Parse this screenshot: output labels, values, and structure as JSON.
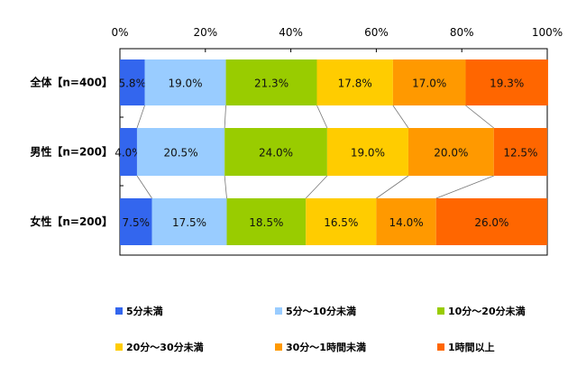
{
  "chart_data": {
    "type": "bar",
    "orientation": "horizontal",
    "stacked": "100%",
    "categories": [
      "全体【n=400】",
      "男性【n=200】",
      "女性【n=200】"
    ],
    "series": [
      {
        "name": "5分未満",
        "color": "#3366ee",
        "values": [
          5.8,
          4.0,
          7.5
        ],
        "labels": [
          "5.8%",
          "4.0%",
          "7.5%"
        ]
      },
      {
        "name": "5分～10分未満",
        "color": "#99ccff",
        "values": [
          19.0,
          20.5,
          17.5
        ],
        "labels": [
          "19.0%",
          "20.5%",
          "17.5%"
        ]
      },
      {
        "name": "10分～20分未満",
        "color": "#99cc00",
        "values": [
          21.3,
          24.0,
          18.5
        ],
        "labels": [
          "21.3%",
          "24.0%",
          "18.5%"
        ]
      },
      {
        "name": "20分～30分未満",
        "color": "#ffcc00",
        "values": [
          17.8,
          19.0,
          16.5
        ],
        "labels": [
          "17.8%",
          "19.0%",
          "16.5%"
        ]
      },
      {
        "name": "30分～1時間未満",
        "color": "#ff9900",
        "values": [
          17.0,
          20.0,
          14.0
        ],
        "labels": [
          "17.0%",
          "20.0%",
          "14.0%"
        ]
      },
      {
        "name": "1時間以上",
        "color": "#ff6600",
        "values": [
          19.3,
          12.5,
          26.0
        ],
        "labels": [
          "19.3%",
          "12.5%",
          "26.0%"
        ]
      }
    ],
    "xlim": [
      0,
      100
    ],
    "xticks": [
      "0%",
      "20%",
      "40%",
      "60%",
      "80%",
      "100%"
    ],
    "axis_position": "top",
    "series_lines": true,
    "legend_position": "bottom",
    "grid": false
  }
}
